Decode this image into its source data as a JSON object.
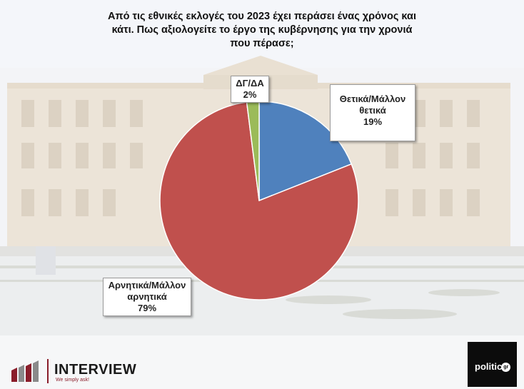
{
  "title": "Από τις εθνικές εκλογές του 2023 έχει περάσει ένας χρόνος και κάτι. Πως αξιολογείτε το έργο της κυβέρνησης για την χρονιά που πέρασε;",
  "colors": {
    "positive": "#4f81bd",
    "negative": "#c0504d",
    "dk": "#9bbb59"
  },
  "chart_data": {
    "type": "pie",
    "slices": [
      {
        "label": "Θετικά/Μάλλον θετικά",
        "value": 19,
        "value_label": "19%",
        "color": "#4f81bd"
      },
      {
        "label": "Αρνητικά/Μάλλον αρνητικά",
        "value": 79,
        "value_label": "79%",
        "color": "#c0504d"
      },
      {
        "label": "ΔΓ/ΔΑ",
        "value": 2,
        "value_label": "2%",
        "color": "#9bbb59"
      }
    ]
  },
  "branding": {
    "interview_name": "INTERVIEW",
    "interview_tagline": "We simply ask!",
    "politic_logo": "politic",
    "politic_suffix": "gr"
  }
}
